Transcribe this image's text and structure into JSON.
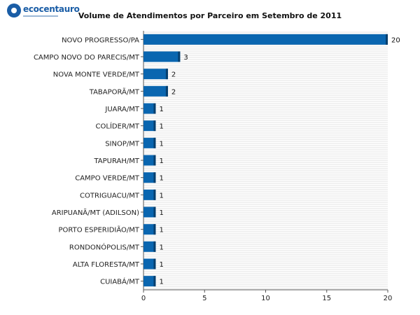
{
  "brand": {
    "name": "ecocentauro"
  },
  "chart_data": {
    "type": "bar",
    "orientation": "horizontal",
    "title": "Volume de Atendimentos por Parceiro em Setembro de 2011",
    "categories": [
      "NOVO PROGRESSO/PA",
      "CAMPO NOVO DO PARECIS/MT",
      "NOVA MONTE VERDE/MT",
      "TABAPORÃ/MT",
      "JUARA/MT",
      "COLÍDER/MT",
      "SINOP/MT",
      "TAPURAH/MT",
      "CAMPO VERDE/MT",
      "COTRIGUACU/MT",
      "ARIPUANÃ/MT (ADILSON)",
      "PORTO ESPERIDIÃO/MT",
      "RONDONÓPOLIS/MT",
      "ALTA FLORESTA/MT",
      "CUIABÁ/MT"
    ],
    "values": [
      20,
      3,
      2,
      2,
      1,
      1,
      1,
      1,
      1,
      1,
      1,
      1,
      1,
      1,
      1
    ],
    "xlim": [
      0,
      20
    ],
    "xticks": [
      0,
      5,
      10,
      15,
      20
    ],
    "grid": true,
    "bar_color": "#0a66b0",
    "bar_shadow_color": "#063f6e"
  }
}
